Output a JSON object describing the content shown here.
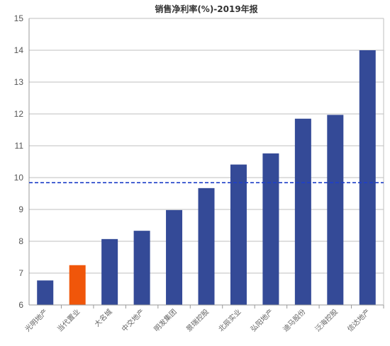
{
  "chart_data": {
    "type": "bar",
    "title": "销售净利率(%)-2019年报",
    "xlabel": "",
    "ylabel": "",
    "categories": [
      "光明地产",
      "当代置业",
      "大名城",
      "中交地产",
      "明发集团",
      "景瑞控股",
      "北辰实业",
      "弘阳地产",
      "迪马股份",
      "泛海控股",
      "信达地产"
    ],
    "values": [
      6.77,
      7.25,
      8.07,
      8.33,
      8.98,
      9.67,
      10.41,
      10.76,
      11.85,
      11.97,
      14.0
    ],
    "highlight_index": 1,
    "ylim": [
      6,
      15
    ],
    "yticks": [
      6,
      7,
      8,
      9,
      10,
      11,
      12,
      13,
      14,
      15
    ],
    "reference_line": {
      "value": 9.84,
      "style": "dashed"
    },
    "grid": true,
    "legend": "none",
    "colors": {
      "bar": "#344a97",
      "highlight": "#f0560a",
      "reference_line": "#1f3fc8",
      "grid": "#bfbfbf",
      "axis": "#999999"
    }
  }
}
